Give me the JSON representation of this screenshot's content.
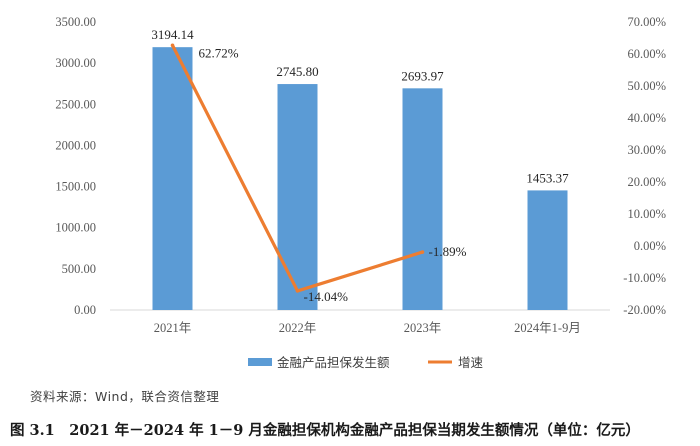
{
  "chart_data": {
    "type": "bar+line",
    "categories": [
      "2021年",
      "2022年",
      "2023年",
      "2024年1-9月"
    ],
    "bar_series": {
      "name": "金融产品担保发生额",
      "values": [
        3194.14,
        2745.8,
        2693.97,
        1453.37
      ],
      "labels": [
        "3194.14",
        "2745.80",
        "2693.97",
        "1453.37"
      ],
      "color": "#5B9BD5"
    },
    "line_series": {
      "name": "增速",
      "values": [
        62.72,
        -14.04,
        -1.89
      ],
      "labels": [
        "62.72%",
        "-14.04%",
        "-1.89%"
      ],
      "color": "#ED7D31"
    },
    "y_left": {
      "min": 0,
      "max": 3500,
      "step": 500,
      "ticks": [
        "0.00",
        "500.00",
        "1000.00",
        "1500.00",
        "2000.00",
        "2500.00",
        "3000.00",
        "3500.00"
      ]
    },
    "y_right": {
      "min": -20,
      "max": 70,
      "step": 10,
      "ticks": [
        "-20.00%",
        "-10.00%",
        "0.00%",
        "10.00%",
        "20.00%",
        "30.00%",
        "40.00%",
        "50.00%",
        "60.00%",
        "70.00%"
      ]
    },
    "grid": false,
    "legend_position": "bottom"
  },
  "source_text": "资料来源：Wind，联合资信整理",
  "caption": "图 3.1　2021 年－2024 年 1－9 月金融担保机构金融产品担保当期发生额情况（单位：亿元）"
}
